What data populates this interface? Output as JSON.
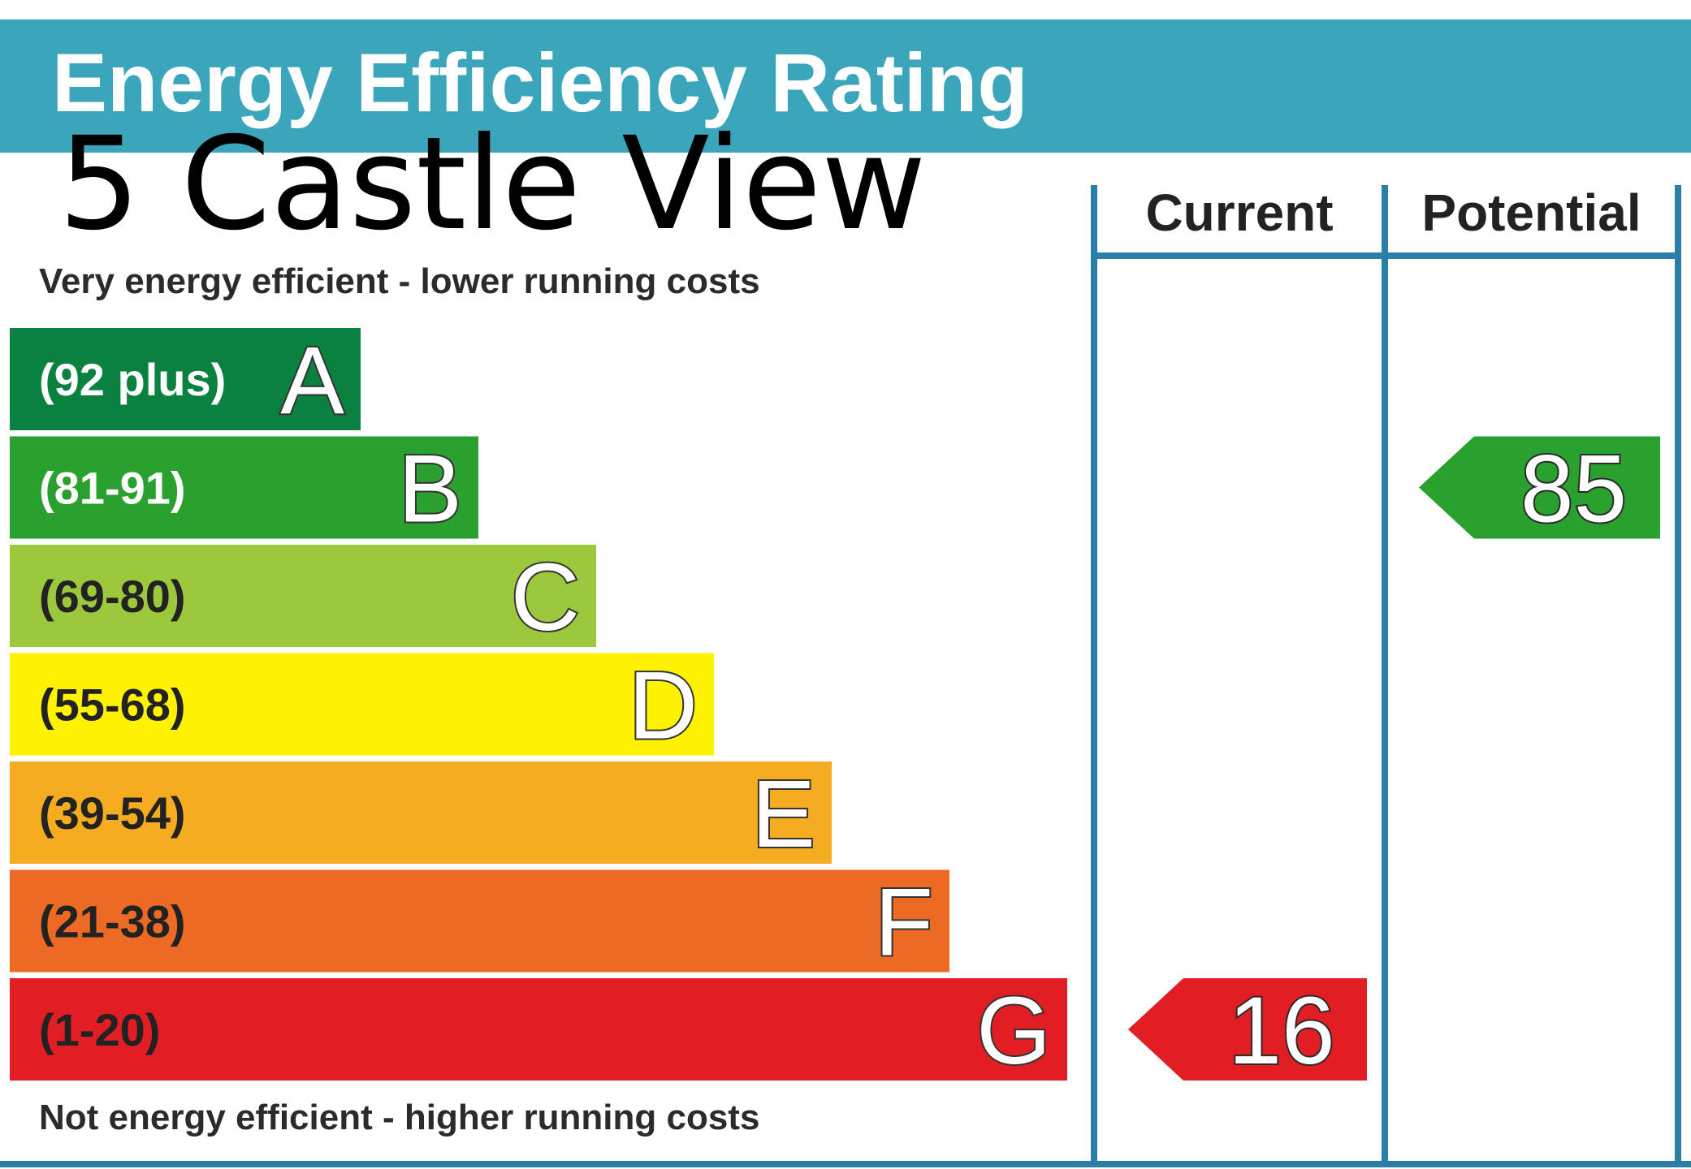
{
  "chart_data": {
    "type": "bar",
    "title": "Energy Efficiency Rating",
    "subtitle": "5 Castle View",
    "top_caption": "Very energy efficient - lower running costs",
    "bottom_caption": "Not energy efficient - higher running costs",
    "columns": [
      "Current",
      "Potential"
    ],
    "bands": [
      {
        "letter": "A",
        "range": "(92 plus)",
        "color": "#0b8140",
        "text_color": "#ffffff"
      },
      {
        "letter": "B",
        "range": "(81-91)",
        "color": "#2aa12f",
        "text_color": "#ffffff"
      },
      {
        "letter": "C",
        "range": "(69-80)",
        "color": "#9cc93c",
        "text_color": "#222222"
      },
      {
        "letter": "D",
        "range": "(55-68)",
        "color": "#fff200",
        "text_color": "#222222"
      },
      {
        "letter": "E",
        "range": "(39-54)",
        "color": "#f6ac21",
        "text_color": "#222222"
      },
      {
        "letter": "F",
        "range": "(21-38)",
        "color": "#ec6a24",
        "text_color": "#222222"
      },
      {
        "letter": "G",
        "range": "(1-20)",
        "color": "#e21e25",
        "text_color": "#222222"
      }
    ],
    "current": {
      "value": 16,
      "label": "16",
      "band": "G",
      "color": "#e21e25"
    },
    "potential": {
      "value": 85,
      "label": "85",
      "band": "B",
      "color": "#2aa12f"
    }
  },
  "colors": {
    "header": "#3ba6bb",
    "frame": "#2a7fa8"
  }
}
